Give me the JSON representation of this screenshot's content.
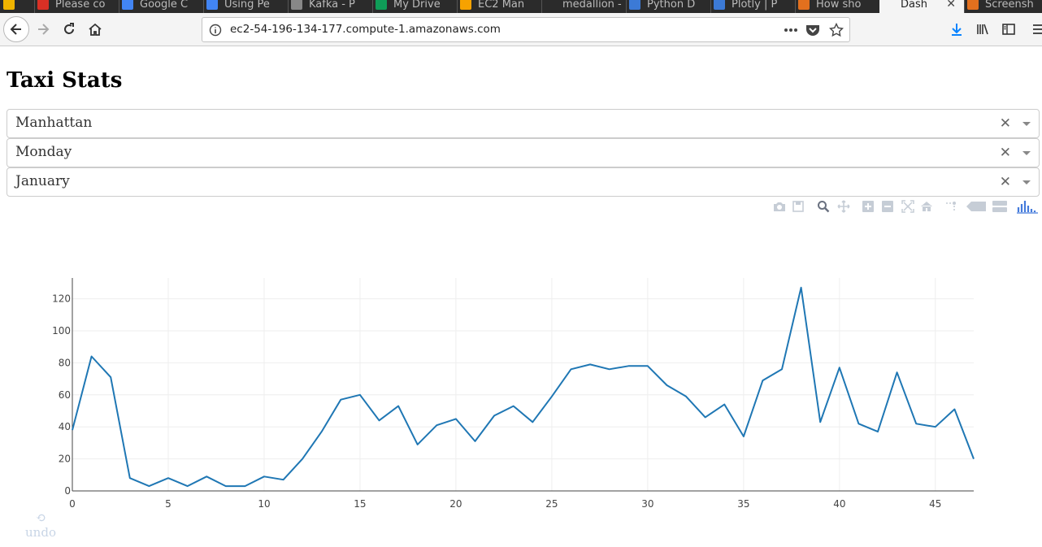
{
  "browser": {
    "tabs": [
      {
        "label": "",
        "favicon": "#f0b400"
      },
      {
        "label": "Please co",
        "favicon": "#d93025"
      },
      {
        "label": "Google C",
        "favicon": "#4285f4"
      },
      {
        "label": "Using Pe",
        "favicon": "#4285f4"
      },
      {
        "label": "Kafka - P",
        "favicon": "#888888"
      },
      {
        "label": "My Drive",
        "favicon": "#0f9d58"
      },
      {
        "label": "EC2 Man",
        "favicon": "#f7a200"
      },
      {
        "label": "medallion -",
        "favicon": ""
      },
      {
        "label": "Python D",
        "favicon": "#3c7ad6"
      },
      {
        "label": "Plotly | P",
        "favicon": "#3c7ad6"
      },
      {
        "label": "How sho",
        "favicon": "#e2701e"
      },
      {
        "label": "Dash",
        "favicon": ""
      },
      {
        "label": "Screensh",
        "favicon": "#e2701e"
      }
    ],
    "url": "ec2-54-196-134-177.compute-1.amazonaws.com"
  },
  "page": {
    "title": "Taxi Stats",
    "dropdowns": [
      {
        "value": "Manhattan"
      },
      {
        "value": "Monday"
      },
      {
        "value": "January"
      }
    ],
    "undo_label": "undo"
  },
  "colors": {
    "line": "#1f77b4",
    "modebar_icon": "#c6cdd6",
    "modebar_active": "#447adb"
  },
  "chart_data": {
    "type": "line",
    "title": "",
    "xlabel": "",
    "ylabel": "",
    "xlim": [
      0,
      47
    ],
    "ylim": [
      0,
      133
    ],
    "x_ticks": [
      0,
      5,
      10,
      15,
      20,
      25,
      30,
      35,
      40,
      45
    ],
    "y_ticks": [
      0,
      20,
      40,
      60,
      80,
      100,
      120
    ],
    "grid": true,
    "series": [
      {
        "name": "",
        "x": [
          0,
          1,
          2,
          3,
          4,
          5,
          6,
          7,
          8,
          9,
          10,
          11,
          12,
          13,
          14,
          15,
          16,
          17,
          18,
          19,
          20,
          21,
          22,
          23,
          24,
          25,
          26,
          27,
          28,
          29,
          30,
          31,
          32,
          33,
          34,
          35,
          36,
          37,
          38,
          39,
          40,
          41,
          42,
          43,
          44,
          45,
          46,
          47
        ],
        "y": [
          38,
          84,
          71,
          8,
          3,
          8,
          3,
          9,
          3,
          3,
          9,
          7,
          20,
          37,
          57,
          60,
          44,
          53,
          29,
          41,
          45,
          31,
          47,
          53,
          43,
          59,
          76,
          79,
          76,
          78,
          78,
          66,
          59,
          46,
          54,
          34,
          69,
          76,
          127,
          43,
          77,
          42,
          37,
          74,
          42,
          40,
          51,
          20
        ]
      }
    ]
  }
}
